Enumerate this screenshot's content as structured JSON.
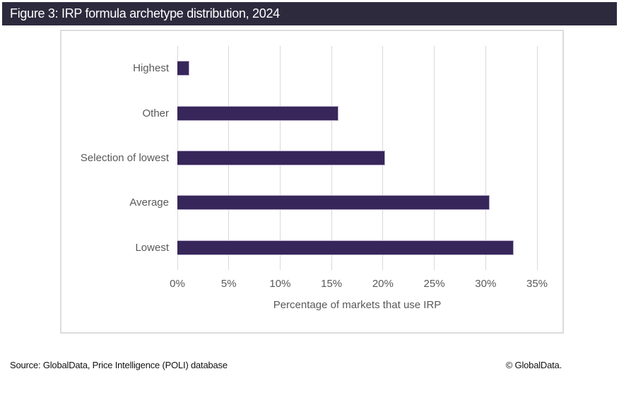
{
  "header": {
    "title": "Figure 3: IRP formula archetype distribution, 2024"
  },
  "chart_data": {
    "type": "bar",
    "orientation": "horizontal",
    "title": "Figure 3: IRP formula archetype distribution, 2024",
    "categories": [
      "Highest",
      "Other",
      "Selection of lowest",
      "Average",
      "Lowest"
    ],
    "values": [
      1.2,
      15.7,
      20.2,
      30.4,
      32.7
    ],
    "unit": "%",
    "xlabel": "Percentage of markets that use IRP",
    "ylabel": "",
    "xlim": [
      0,
      35
    ],
    "xtick_step": 5,
    "xticks": [
      "0%",
      "5%",
      "10%",
      "15%",
      "20%",
      "25%",
      "30%",
      "35%"
    ],
    "grid": "vertical-only",
    "legend": "none",
    "bar_color": "#37265a",
    "bar_border_color": "#b9aecd",
    "grid_color": "#d9d9d9",
    "axis_text_color": "#595959"
  },
  "footer": {
    "source": "Source: GlobalData, Price Intelligence (POLI) database",
    "copyright": "© GlobalData."
  },
  "colors": {
    "header_bg": "#2e2a3e",
    "header_text": "#ffffff",
    "frame_border": "#dcdcdc",
    "background": "#ffffff"
  }
}
